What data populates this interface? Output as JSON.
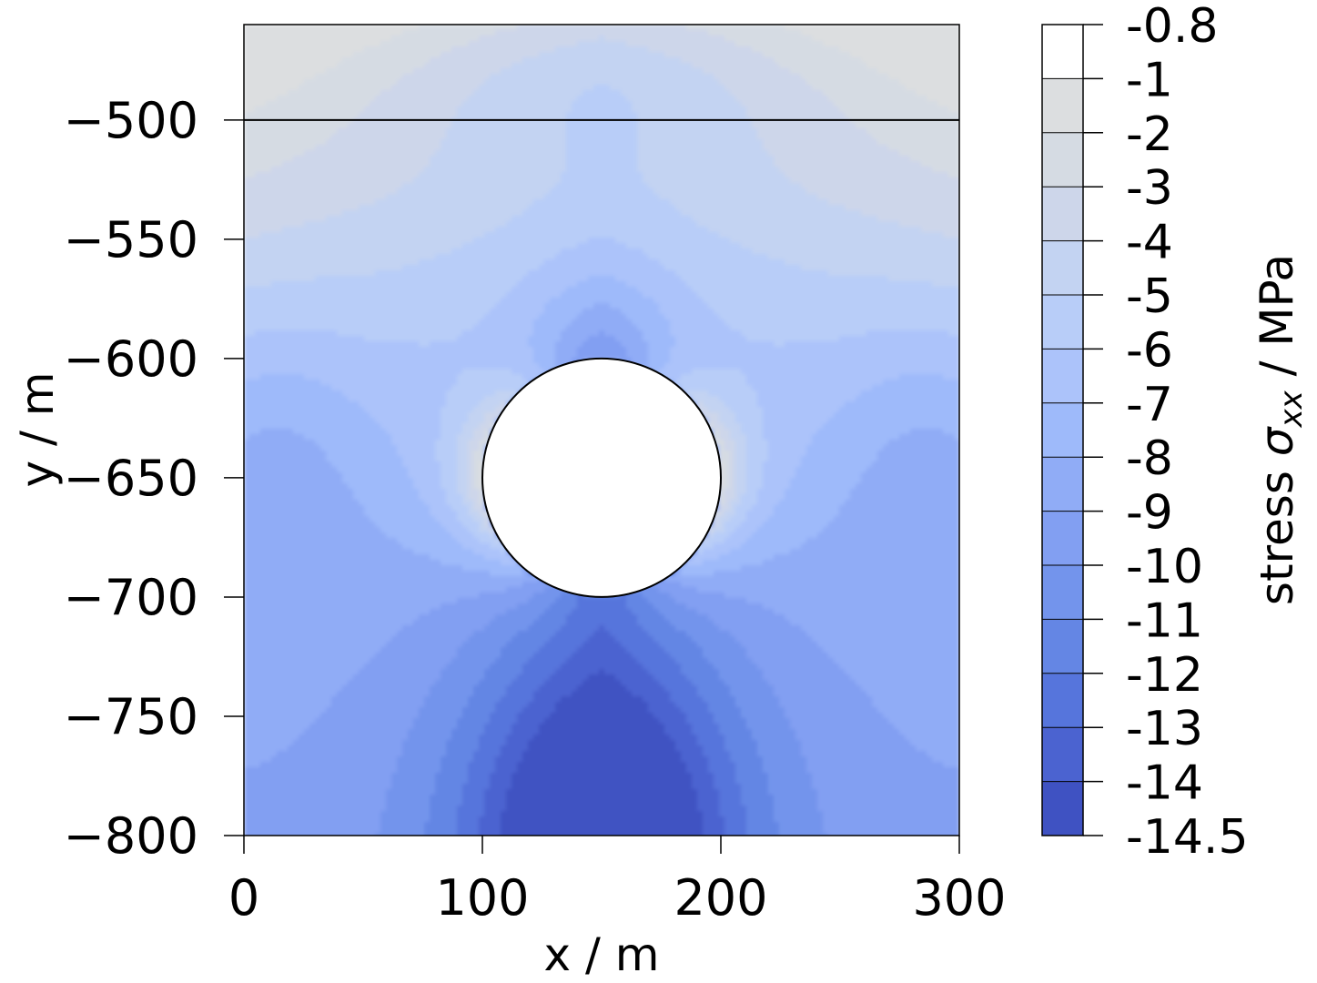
{
  "chart_data": {
    "type": "contour",
    "xlabel": "x / m",
    "ylabel": "y / m",
    "xlim": [
      0,
      300
    ],
    "ylim": [
      -800,
      -460
    ],
    "xticks": [
      {
        "value": 0,
        "label": "0"
      },
      {
        "value": 100,
        "label": "100"
      },
      {
        "value": 200,
        "label": "200"
      },
      {
        "value": 300,
        "label": "300"
      }
    ],
    "yticks": [
      {
        "value": -500,
        "label": "−500"
      },
      {
        "value": -550,
        "label": "−550"
      },
      {
        "value": -600,
        "label": "−600"
      },
      {
        "value": -650,
        "label": "−650"
      },
      {
        "value": -700,
        "label": "−700"
      },
      {
        "value": -750,
        "label": "−750"
      },
      {
        "value": -800,
        "label": "−800"
      }
    ],
    "horizontal_line_y": -500,
    "cavity": {
      "cx": 150,
      "cy": -650,
      "r": 50
    },
    "colorbar": {
      "label_prefix": "stress ",
      "label_symbol": "σ",
      "label_subscript": "xx",
      "label_suffix": " / MPa",
      "levels": [
        -14.5,
        -14,
        -13,
        -12,
        -11,
        -10,
        -9,
        -8,
        -7,
        -6,
        -5,
        -4,
        -3,
        -2,
        -1,
        -0.8
      ],
      "level_labels": [
        "-14.5",
        "-14",
        "-13",
        "-12",
        "-11",
        "-10",
        "-9",
        "-8",
        "-7",
        "-6",
        "-5",
        "-4",
        "-3",
        "-2",
        "-1",
        "-0.8"
      ],
      "colors": [
        "#3f52c2",
        "#4b63d0",
        "#5675dc",
        "#6486e4",
        "#7394ec",
        "#829ff2",
        "#90acf6",
        "#9ebafa",
        "#acc3fa",
        "#b8cdf8",
        "#c3d3f2",
        "#cdd6ea",
        "#d5dbe3",
        "#dcdee0"
      ]
    },
    "field_stress_MPa": {
      "description_free": true,
      "anchors": [
        {
          "x": 150,
          "y": -800,
          "v": -14.2
        },
        {
          "x": 150,
          "y": -760,
          "v": -12.3
        },
        {
          "x": 150,
          "y": -720,
          "v": -10.3
        },
        {
          "x": 0,
          "y": -650,
          "v": -8.6
        },
        {
          "x": 300,
          "y": -650,
          "v": -8.6
        },
        {
          "x": 30,
          "y": -800,
          "v": -7.2
        },
        {
          "x": 270,
          "y": -800,
          "v": -7.2
        },
        {
          "x": 0,
          "y": -470,
          "v": -1.6
        },
        {
          "x": 300,
          "y": -470,
          "v": -1.6
        },
        {
          "x": 150,
          "y": -470,
          "v": -6.1
        },
        {
          "x": 150,
          "y": -580,
          "v": -6.4
        },
        {
          "x": 100,
          "y": -650,
          "v": -2.0
        },
        {
          "x": 200,
          "y": -650,
          "v": -2.0
        }
      ]
    }
  }
}
